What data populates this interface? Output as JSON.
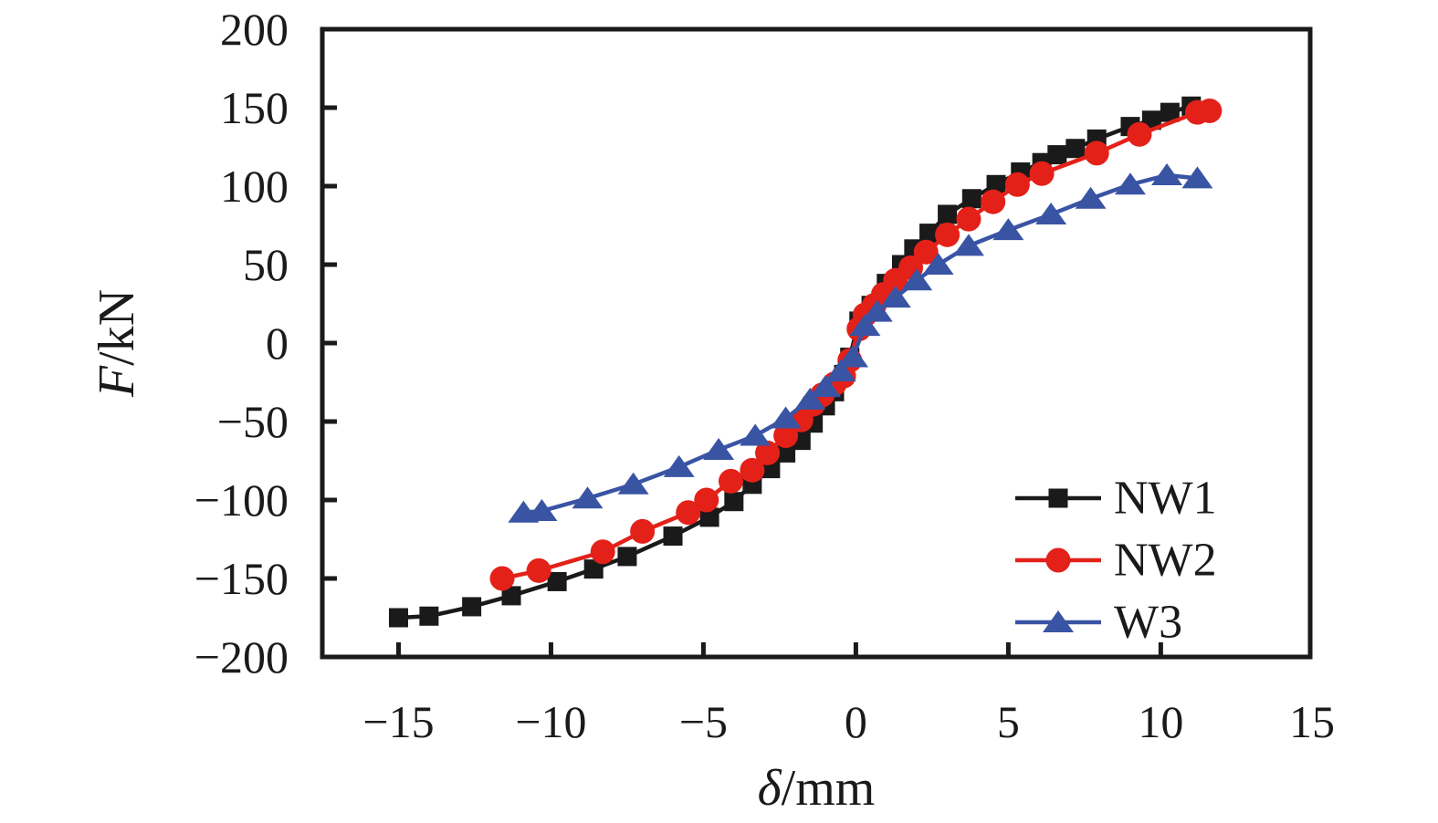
{
  "chart_data": {
    "type": "line",
    "title": "",
    "xlabel_italic": "δ",
    "xlabel_rest": "/mm",
    "ylabel_italic": "F",
    "ylabel_rest": "/kN",
    "xlim": [
      -17.5,
      14.9
    ],
    "ylim": [
      -200,
      200
    ],
    "x_ticks": [
      -15,
      -10,
      -5,
      0,
      5,
      10,
      15
    ],
    "y_ticks": [
      -200,
      -150,
      -100,
      -50,
      0,
      50,
      100,
      150,
      200
    ],
    "grid": false,
    "legend_position": "inside-bottom-right",
    "axis_color": "#1a1a1a",
    "series": [
      {
        "name": "NW1",
        "color": "#1a1a1a",
        "marker": "square",
        "points": [
          [
            -15.0,
            -175
          ],
          [
            -14.0,
            -174
          ],
          [
            -12.6,
            -168
          ],
          [
            -11.3,
            -161
          ],
          [
            -9.8,
            -152
          ],
          [
            -8.6,
            -144
          ],
          [
            -7.5,
            -136
          ],
          [
            -6.0,
            -123
          ],
          [
            -4.8,
            -111
          ],
          [
            -4.0,
            -101
          ],
          [
            -3.4,
            -90
          ],
          [
            -2.8,
            -80
          ],
          [
            -2.3,
            -70
          ],
          [
            -1.8,
            -62
          ],
          [
            -1.4,
            -51
          ],
          [
            -1.0,
            -40
          ],
          [
            -0.7,
            -31
          ],
          [
            -0.4,
            -20
          ],
          [
            -0.2,
            -9
          ],
          [
            0.1,
            14
          ],
          [
            0.5,
            24
          ],
          [
            1.0,
            38
          ],
          [
            1.5,
            50
          ],
          [
            1.9,
            60
          ],
          [
            2.4,
            70
          ],
          [
            3.0,
            82
          ],
          [
            3.8,
            92
          ],
          [
            4.6,
            101
          ],
          [
            5.4,
            109
          ],
          [
            6.1,
            115
          ],
          [
            6.6,
            120
          ],
          [
            7.2,
            124
          ],
          [
            7.9,
            130
          ],
          [
            9.0,
            138
          ],
          [
            9.7,
            142
          ],
          [
            10.3,
            147
          ],
          [
            11.0,
            151
          ]
        ]
      },
      {
        "name": "NW2",
        "color": "#e32119",
        "marker": "circle",
        "points": [
          [
            -11.6,
            -150
          ],
          [
            -10.4,
            -145
          ],
          [
            -8.3,
            -133
          ],
          [
            -7.0,
            -120
          ],
          [
            -5.5,
            -108
          ],
          [
            -4.9,
            -100
          ],
          [
            -4.1,
            -88
          ],
          [
            -3.4,
            -81
          ],
          [
            -2.9,
            -70
          ],
          [
            -2.3,
            -59
          ],
          [
            -1.8,
            -49
          ],
          [
            -1.4,
            -39
          ],
          [
            -1.1,
            -33
          ],
          [
            -0.7,
            -26
          ],
          [
            -0.4,
            -21
          ],
          [
            -0.2,
            -11
          ],
          [
            0.1,
            9
          ],
          [
            0.3,
            18
          ],
          [
            0.6,
            24
          ],
          [
            0.9,
            31
          ],
          [
            1.3,
            40
          ],
          [
            1.8,
            48
          ],
          [
            2.3,
            58
          ],
          [
            3.0,
            69
          ],
          [
            3.7,
            79
          ],
          [
            4.5,
            90
          ],
          [
            5.3,
            101
          ],
          [
            6.1,
            108
          ],
          [
            7.9,
            121
          ],
          [
            9.3,
            133
          ],
          [
            11.2,
            147
          ],
          [
            11.6,
            148
          ]
        ]
      },
      {
        "name": "W3",
        "color": "#3a54a4",
        "marker": "triangle",
        "points": [
          [
            -10.9,
            -108
          ],
          [
            -10.3,
            -107
          ],
          [
            -8.8,
            -99
          ],
          [
            -7.3,
            -90
          ],
          [
            -5.8,
            -79
          ],
          [
            -4.5,
            -68
          ],
          [
            -3.3,
            -59
          ],
          [
            -2.3,
            -48
          ],
          [
            -1.5,
            -36
          ],
          [
            -1.0,
            -28
          ],
          [
            -0.5,
            -18
          ],
          [
            -0.1,
            -9
          ],
          [
            0.3,
            11
          ],
          [
            0.7,
            20
          ],
          [
            1.3,
            29
          ],
          [
            2.0,
            40
          ],
          [
            2.7,
            50
          ],
          [
            3.7,
            62
          ],
          [
            5.0,
            72
          ],
          [
            6.4,
            82
          ],
          [
            7.7,
            92
          ],
          [
            9.0,
            101
          ],
          [
            10.2,
            107
          ],
          [
            11.2,
            105
          ]
        ]
      }
    ],
    "legend_labels": [
      "NW1",
      "NW2",
      "W3"
    ]
  }
}
